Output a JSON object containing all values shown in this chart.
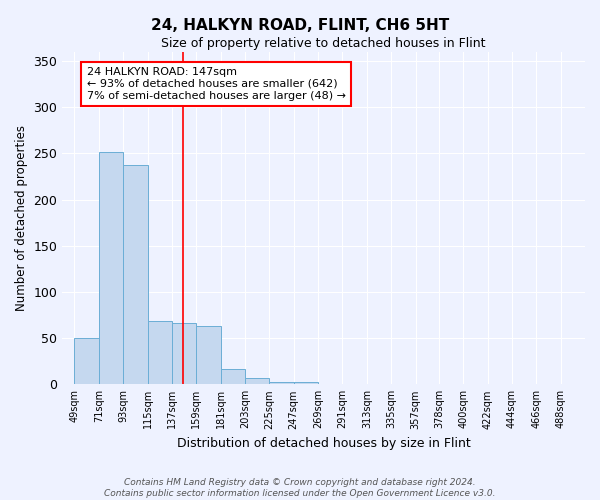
{
  "title": "24, HALKYN ROAD, FLINT, CH6 5HT",
  "subtitle": "Size of property relative to detached houses in Flint",
  "xlabel": "Distribution of detached houses by size in Flint",
  "ylabel": "Number of detached properties",
  "bin_labels": [
    "49sqm",
    "71sqm",
    "93sqm",
    "115sqm",
    "137sqm",
    "159sqm",
    "181sqm",
    "203sqm",
    "225sqm",
    "247sqm",
    "269sqm",
    "291sqm",
    "313sqm",
    "335sqm",
    "357sqm",
    "378sqm",
    "400sqm",
    "422sqm",
    "444sqm",
    "466sqm",
    "488sqm"
  ],
  "bar_heights": [
    50,
    251,
    237,
    69,
    66,
    63,
    17,
    7,
    3,
    2,
    0,
    0,
    0,
    0,
    0,
    0,
    0,
    0,
    0,
    0,
    0
  ],
  "bar_color": "#C5D8EF",
  "bar_edge_color": "#6BAED6",
  "vline_x": 147,
  "vline_color": "red",
  "annotation_title": "24 HALKYN ROAD: 147sqm",
  "annotation_line1": "← 93% of detached houses are smaller (642)",
  "annotation_line2": "7% of semi-detached houses are larger (48) →",
  "annotation_box_color": "white",
  "annotation_box_edge_color": "red",
  "ylim": [
    0,
    360
  ],
  "xlim_min": 38,
  "xlim_max": 510,
  "bin_width": 22,
  "footer_line1": "Contains HM Land Registry data © Crown copyright and database right 2024.",
  "footer_line2": "Contains public sector information licensed under the Open Government Licence v3.0.",
  "bg_color": "#EEF2FF",
  "grid_color": "#FFFFFF"
}
